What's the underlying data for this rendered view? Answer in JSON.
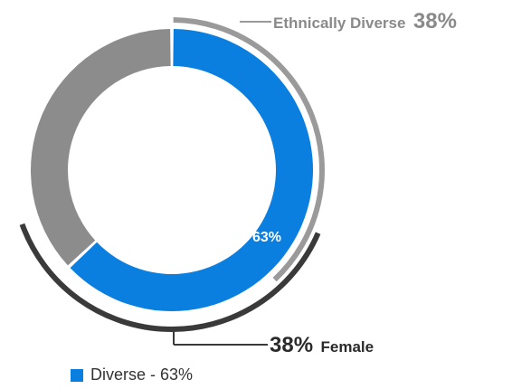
{
  "chart_data": {
    "type": "pie",
    "donut": true,
    "slices": [
      {
        "label": "Diverse",
        "value": 63,
        "color": "#0a7fe0"
      },
      {
        "value": 37,
        "color": "#8c8c8c"
      }
    ],
    "inner_label": "63%",
    "annotations": [
      {
        "value_text": "38%",
        "text": "Ethnically Diverse",
        "value": 38,
        "color": "#9a9a9a"
      },
      {
        "value_text": "38%",
        "text": "Female",
        "value": 38,
        "color": "#3a3a3a"
      }
    ],
    "legend": [
      {
        "text": "Diverse - 63%",
        "color": "#0a7fe0"
      }
    ],
    "legend_position": "bottom-left"
  }
}
